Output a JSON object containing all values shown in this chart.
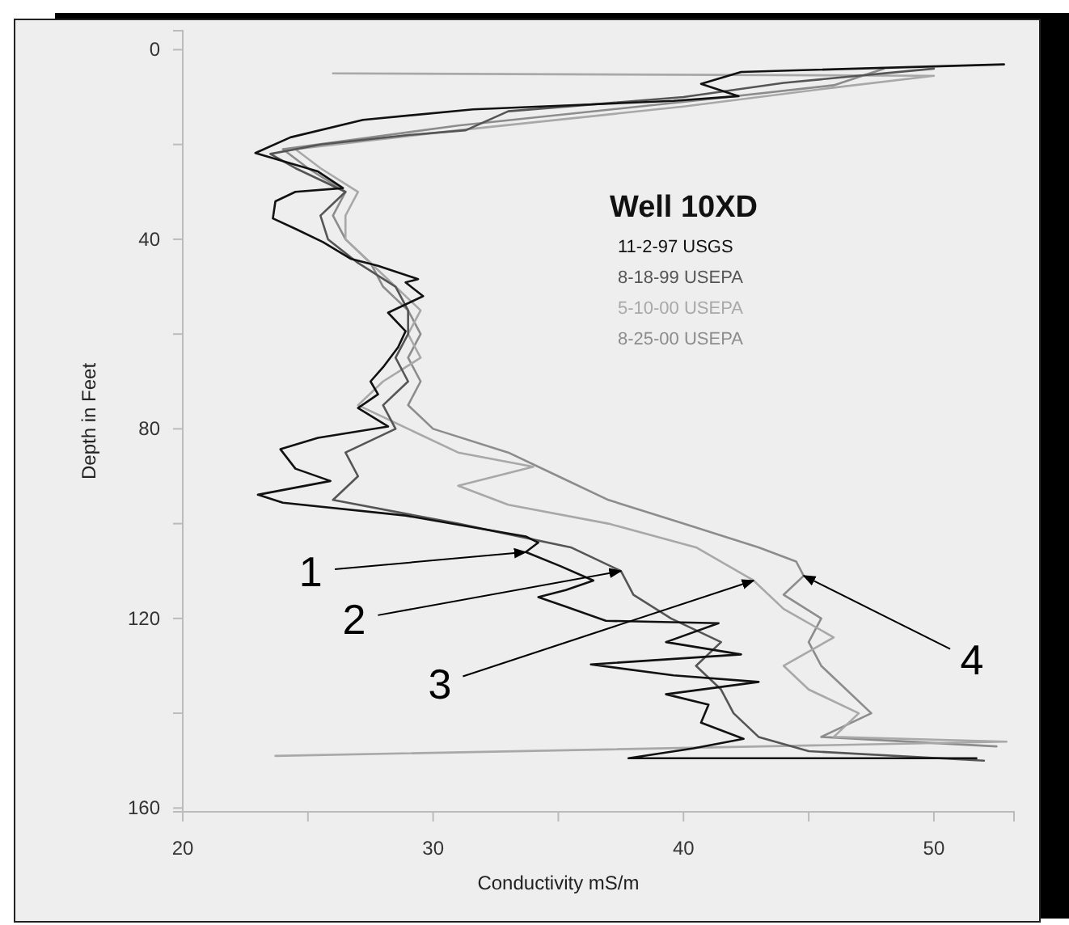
{
  "chart_data": {
    "type": "line",
    "legend_title": "Well 10XD",
    "xlabel": "Conductivity mS/m",
    "ylabel": "Depth in Feet",
    "xlim": [
      20,
      53.2
    ],
    "xticks": [
      20,
      {
        "value": 25,
        "label": null
      },
      30,
      {
        "value": 35,
        "label": null
      },
      40,
      {
        "value": 45,
        "label": null
      },
      50
    ],
    "ylim": [
      160.8,
      -4
    ],
    "yticks": [
      0,
      {
        "value": 20,
        "label": null
      },
      40,
      {
        "value": 60,
        "label": null
      },
      80,
      {
        "value": 100,
        "label": null
      },
      120,
      {
        "value": 140,
        "label": null
      },
      160
    ],
    "legend": "top right",
    "grid": false,
    "marker": "none",
    "line_style": "solid",
    "series": [
      {
        "name": "11-2-97 USGS",
        "color": "#111111",
        "x": [
          52.8,
          42.3,
          40.7,
          42.2,
          39.6,
          31.6,
          27.2,
          24.3,
          22.9,
          24.0,
          25.4,
          26.4,
          24.5,
          23.7,
          23.6,
          24.5,
          25.6,
          26.7,
          27.8,
          28.6,
          29.4,
          28.9,
          29.6,
          28.2,
          28.9,
          28.6,
          28.0,
          27.5,
          27.8,
          27.0,
          28.2,
          25.4,
          23.9,
          24.5,
          25.9,
          23.0,
          24.0,
          28.9,
          33.7,
          34.2,
          33.7,
          35.1,
          36.4,
          35.3,
          34.2,
          35.3,
          36.9,
          41.4,
          39.3,
          42.3,
          36.3,
          39.6,
          43.0,
          39.3,
          41.0,
          40.7,
          42.4,
          40.4,
          37.8,
          51.7
        ],
        "values": [
          3.1,
          4.7,
          7.2,
          9.8,
          10.8,
          12.6,
          14.8,
          18.5,
          21.8,
          23.5,
          25.7,
          29.2,
          30,
          32,
          35.6,
          37.8,
          40.6,
          44.1,
          45.6,
          47,
          48.4,
          49.1,
          52,
          55.5,
          59.4,
          62.8,
          67,
          70,
          72.7,
          75.6,
          79.5,
          81.9,
          84.3,
          88.4,
          91,
          93.9,
          95.6,
          98.3,
          102.7,
          104,
          106,
          109,
          112,
          114,
          115.5,
          117.5,
          120.5,
          121,
          125,
          127.6,
          129.7,
          132,
          133.4,
          136,
          138.2,
          142,
          145.4,
          147.4,
          149.5,
          149.5
        ]
      },
      {
        "name": "8-18-99 USEPA",
        "color": "#555555",
        "x": [
          50,
          44,
          40,
          33,
          31.3,
          29,
          25.5,
          23.5,
          24.5,
          26.5,
          25.5,
          25.8,
          27,
          28.5,
          29,
          29,
          28.5,
          29,
          28,
          28.5,
          26.5,
          27,
          26,
          31,
          35.5,
          37.5,
          38,
          39.5,
          41.5,
          40.5,
          41.5,
          42,
          43,
          45,
          52
        ],
        "values": [
          4,
          7,
          10,
          13,
          17,
          18,
          20,
          22,
          25,
          30,
          35,
          40,
          45,
          50,
          55,
          60,
          65,
          70,
          75,
          80,
          85,
          90,
          95,
          100,
          105,
          110,
          115,
          120,
          125,
          130,
          135,
          140,
          145,
          148,
          150
        ]
      },
      {
        "name": "5-10-00 USEPA",
        "color": "#a8a8a8",
        "x": [
          26,
          50,
          46,
          40,
          31,
          24.5,
          25.5,
          27,
          26.5,
          26.5,
          27.5,
          28.5,
          29.5,
          29,
          29.5,
          28,
          27,
          29,
          31,
          34,
          31,
          33,
          37,
          40.5,
          42.8,
          44,
          46,
          44,
          45,
          47,
          46,
          52.9,
          23.7
        ],
        "values": [
          5,
          5.5,
          8,
          12,
          17,
          21,
          25,
          30,
          35,
          40,
          45,
          50,
          55,
          60,
          65,
          70,
          75,
          80,
          85,
          88,
          92,
          96,
          100,
          105,
          112,
          118,
          124,
          130,
          135,
          140,
          145,
          146,
          149
        ]
      },
      {
        "name": "8-25-00 USEPA",
        "color": "#8c8c8c",
        "x": [
          48,
          46,
          40,
          31,
          24,
          25,
          26.5,
          26,
          26.5,
          27.5,
          28,
          29,
          29.5,
          29,
          29.5,
          29,
          30,
          33,
          35,
          37,
          40,
          43,
          44.5,
          44.8,
          44,
          45.5,
          45,
          45.5,
          46.5,
          47.5,
          45.5,
          52.5
        ],
        "values": [
          4,
          7.5,
          11,
          16,
          21,
          25,
          30,
          35,
          40,
          45,
          50,
          55,
          60,
          65,
          70,
          75,
          80,
          85,
          90,
          95,
          100,
          105,
          108,
          111,
          115,
          120,
          125,
          130,
          135,
          140,
          145,
          147
        ]
      }
    ],
    "annotations": [
      {
        "text": "1",
        "x": 33.7,
        "y": 106
      },
      {
        "text": "2",
        "x": 37.5,
        "y": 110
      },
      {
        "text": "3",
        "x": 42.8,
        "y": 112
      },
      {
        "text": "4",
        "x": 44.8,
        "y": 111
      }
    ]
  }
}
